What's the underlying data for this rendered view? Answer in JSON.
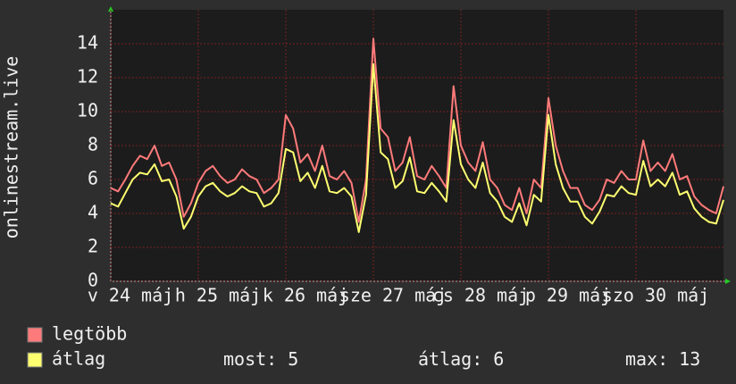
{
  "chart_data": {
    "type": "line",
    "y_label": "onlinestream.live",
    "x": [
      0,
      2,
      4,
      6,
      8,
      10,
      12,
      14,
      16,
      18,
      20,
      22,
      24,
      26,
      28,
      30,
      32,
      34,
      36,
      38,
      40,
      42,
      44,
      46,
      48,
      50,
      52,
      54,
      56,
      58,
      60,
      62,
      64,
      66,
      68,
      70,
      72,
      74,
      76,
      78,
      80,
      82,
      84,
      86,
      88,
      90,
      92,
      94,
      96,
      98,
      100,
      102,
      104,
      106,
      108,
      110,
      112,
      114,
      116,
      118,
      120,
      122,
      124,
      126,
      128,
      130,
      132,
      134,
      136,
      138,
      140,
      142,
      144,
      146,
      148,
      150,
      152,
      154,
      156,
      158,
      160,
      162,
      164,
      166,
      168
    ],
    "xlim": [
      0,
      168
    ],
    "xticks": [
      {
        "value": 0,
        "label": "v 24 máj"
      },
      {
        "value": 24,
        "label": "h 25 máj"
      },
      {
        "value": 48,
        "label": "k 26 máj"
      },
      {
        "value": 72,
        "label": "sze 27 máj"
      },
      {
        "value": 96,
        "label": "cs 28 máj"
      },
      {
        "value": 120,
        "label": "p 29 máj"
      },
      {
        "value": 144,
        "label": "szo 30 máj"
      }
    ],
    "ylim": [
      0,
      16
    ],
    "yticks": [
      0,
      2,
      4,
      6,
      8,
      10,
      12,
      14
    ],
    "grid": true,
    "series": [
      {
        "name": "legtöbb",
        "color": "#ff7a7a",
        "values": [
          5.5,
          5.3,
          6.0,
          6.8,
          7.4,
          7.2,
          8.0,
          6.8,
          7.0,
          6.0,
          3.8,
          4.6,
          5.8,
          6.5,
          6.8,
          6.2,
          5.8,
          6.0,
          6.6,
          6.2,
          6.0,
          5.2,
          5.5,
          6.0,
          9.8,
          9.0,
          7.0,
          7.5,
          6.5,
          8.0,
          6.2,
          6.0,
          6.5,
          5.8,
          3.5,
          6.0,
          14.3,
          9.0,
          8.5,
          6.5,
          7.0,
          8.5,
          6.2,
          6.0,
          6.8,
          6.2,
          5.5,
          11.5,
          8.0,
          7.0,
          6.5,
          8.2,
          6.0,
          5.5,
          4.5,
          4.2,
          5.5,
          4.0,
          6.0,
          5.5,
          10.8,
          8.0,
          6.5,
          5.5,
          5.5,
          4.5,
          4.2,
          4.8,
          6.0,
          5.8,
          6.5,
          6.0,
          6.0,
          8.3,
          6.5,
          7.0,
          6.5,
          7.5,
          6.0,
          6.2,
          5.0,
          4.5,
          4.2,
          4.0,
          5.6
        ]
      },
      {
        "name": "átlag",
        "color": "#ffff70",
        "values": [
          4.6,
          4.4,
          5.2,
          6.0,
          6.4,
          6.3,
          6.9,
          5.9,
          6.0,
          5.0,
          3.1,
          3.8,
          5.0,
          5.6,
          5.8,
          5.3,
          5.0,
          5.2,
          5.6,
          5.3,
          5.2,
          4.4,
          4.6,
          5.2,
          7.8,
          7.6,
          5.9,
          6.4,
          5.5,
          6.8,
          5.3,
          5.2,
          5.5,
          5.0,
          2.9,
          5.1,
          12.8,
          7.6,
          7.2,
          5.5,
          5.9,
          7.3,
          5.3,
          5.2,
          5.8,
          5.3,
          4.7,
          9.5,
          6.9,
          6.0,
          5.5,
          7.0,
          5.2,
          4.7,
          3.8,
          3.5,
          4.6,
          3.3,
          5.1,
          4.7,
          9.8,
          6.9,
          5.5,
          4.7,
          4.7,
          3.8,
          3.4,
          4.1,
          5.1,
          5.0,
          5.6,
          5.2,
          5.1,
          7.1,
          5.6,
          6.0,
          5.6,
          6.4,
          5.1,
          5.3,
          4.3,
          3.8,
          3.5,
          3.4,
          4.8
        ]
      }
    ],
    "stats": [
      {
        "label": "most:",
        "value": 5
      },
      {
        "label": "átlag:",
        "value": 6
      },
      {
        "label": "max:",
        "value": 13
      }
    ]
  }
}
